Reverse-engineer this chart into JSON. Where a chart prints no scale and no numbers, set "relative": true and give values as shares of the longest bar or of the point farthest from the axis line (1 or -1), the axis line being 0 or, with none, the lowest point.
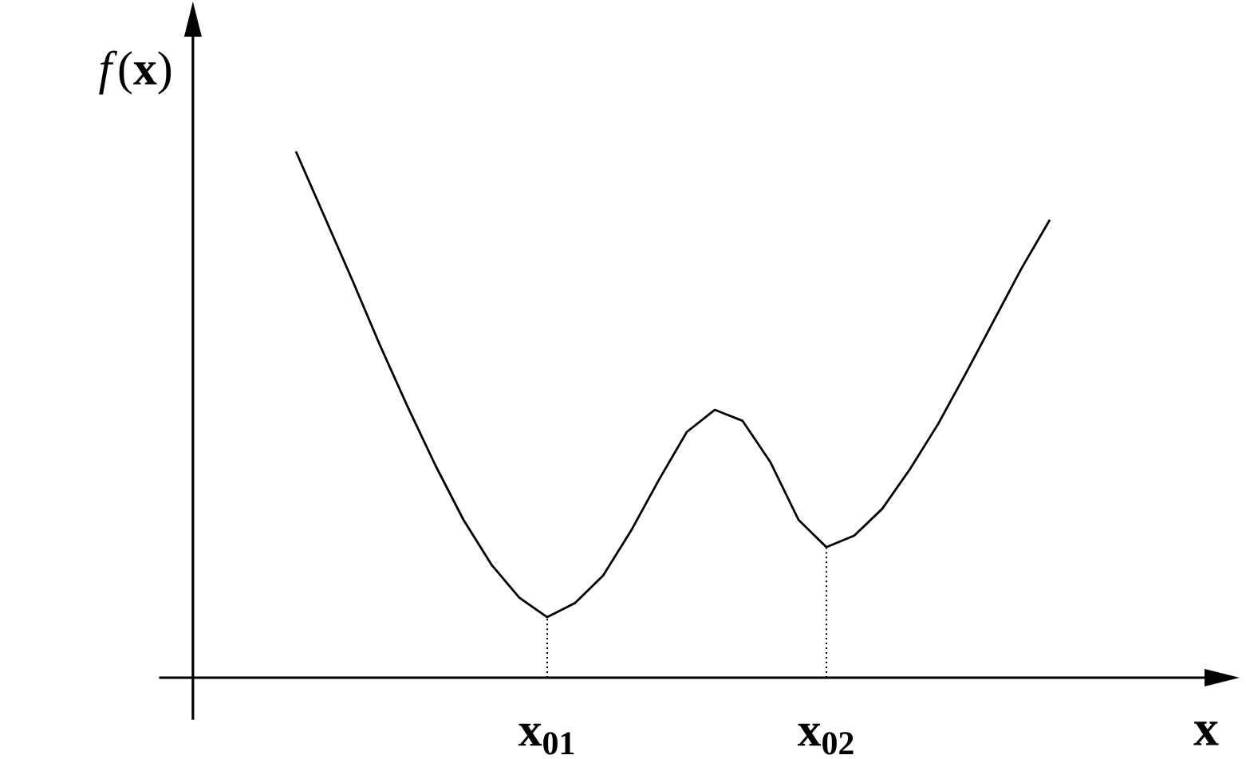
{
  "chart_data": {
    "type": "line",
    "relative": true,
    "ylabel": "*f*(**x**)",
    "xlabel": "x",
    "categories": [
      null,
      null,
      null,
      null,
      null,
      null,
      null,
      null,
      null,
      "x$_{01}$",
      null,
      null,
      null,
      null,
      null,
      null,
      null,
      null,
      null,
      "x$_{02}$",
      null,
      null,
      null,
      null,
      null,
      null,
      null,
      null
    ],
    "marker": "none",
    "line_style": "solid",
    "ref_lines": [
      {
        "axis": "x",
        "value": "x$_{01}$",
        "line_style": "dotted"
      },
      {
        "axis": "x",
        "value": "x$_{02}$",
        "line_style": "dotted"
      }
    ],
    "series": [
      {
        "color": "#000000",
        "values": [
          1.0,
          0.879,
          0.758,
          0.633,
          0.515,
          0.403,
          0.3,
          0.215,
          0.152,
          0.115,
          0.142,
          0.194,
          0.279,
          0.376,
          0.467,
          0.509,
          0.488,
          0.409,
          0.3,
          0.248,
          0.27,
          0.321,
          0.397,
          0.482,
          0.579,
          0.679,
          0.779,
          0.87
        ]
      }
    ]
  }
}
